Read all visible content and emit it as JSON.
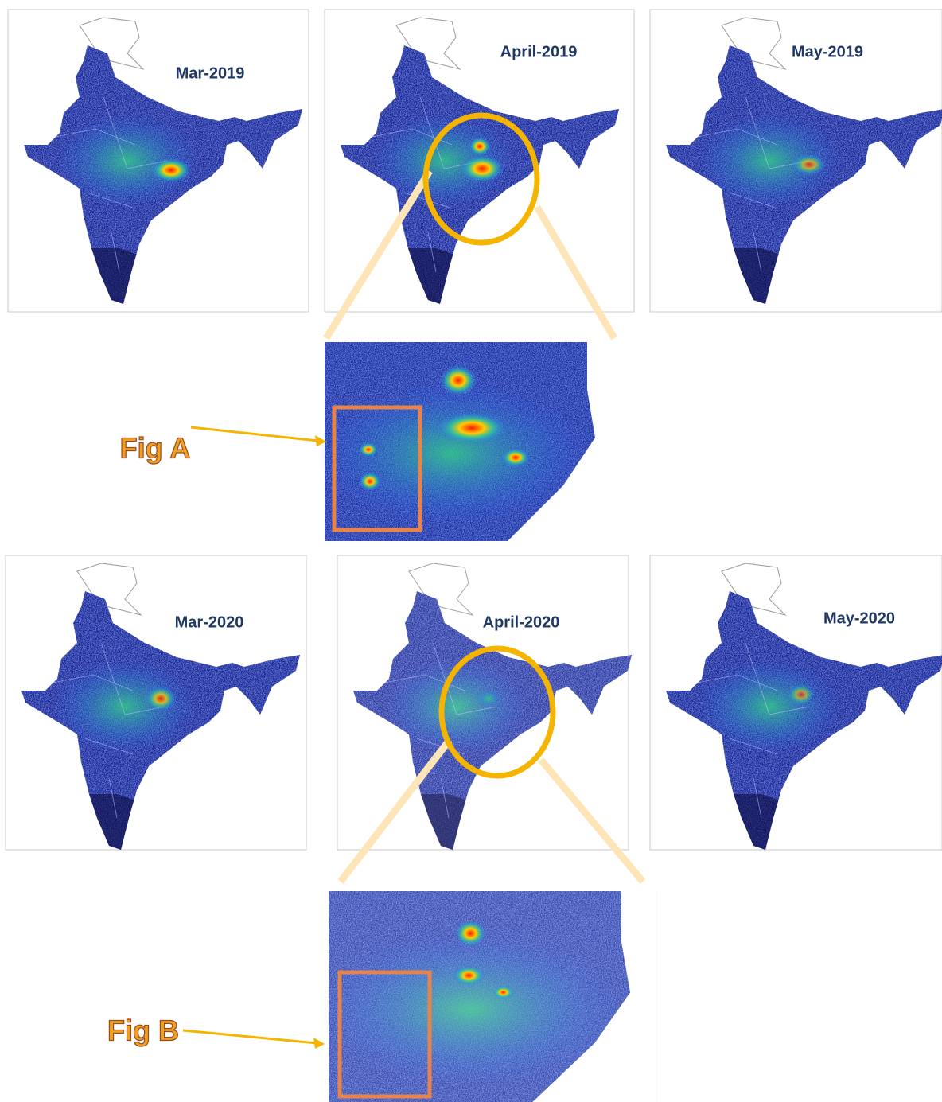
{
  "panels": [
    {
      "label": "Mar-2019"
    },
    {
      "label": "April-2019"
    },
    {
      "label": "May-2019"
    },
    {
      "label": "Mar-2020"
    },
    {
      "label": "April-2020"
    },
    {
      "label": "May-2020"
    }
  ],
  "figures": [
    {
      "label": "Fig A"
    },
    {
      "label": "Fig B"
    }
  ]
}
